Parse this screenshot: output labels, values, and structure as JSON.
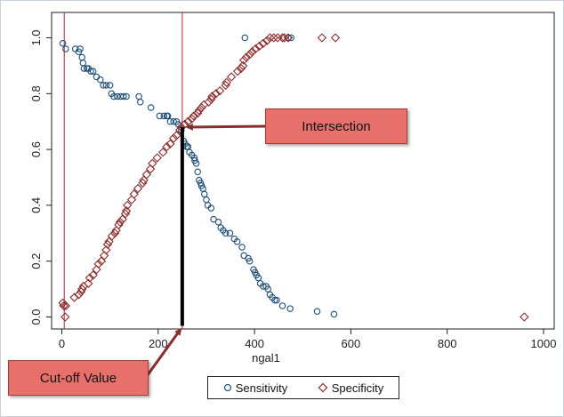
{
  "chart_data": {
    "type": "scatter",
    "xlabel": "ngal1",
    "ylabel": "",
    "xlim": [
      0,
      1000
    ],
    "ylim": [
      0,
      1
    ],
    "xticks": [
      0,
      200,
      400,
      600,
      800,
      1000
    ],
    "yticks": [
      "0.0",
      "0.2",
      "0.4",
      "0.6",
      "0.8",
      "1.0"
    ],
    "vertical_lines": [
      5,
      250
    ],
    "cutoff_line": {
      "x": 250,
      "y_from": 0,
      "y_to": 0.68
    },
    "legend_placement": "bottom-center",
    "grid": false,
    "series": [
      {
        "name": "Sensitivity",
        "marker": "circle",
        "color": "#1f4e79",
        "x": [
          2,
          8,
          28,
          35,
          38,
          42,
          44,
          46,
          52,
          55,
          60,
          65,
          72,
          80,
          86,
          92,
          100,
          103,
          108,
          115,
          122,
          128,
          134,
          160,
          163,
          185,
          203,
          212,
          218,
          220,
          225,
          232,
          238,
          242,
          248,
          253,
          256,
          259,
          262,
          265,
          270,
          275,
          276,
          279,
          282,
          285,
          288,
          290,
          293,
          296,
          300,
          303,
          310,
          315,
          325,
          330,
          335,
          340,
          349,
          358,
          364,
          374,
          378,
          387,
          390,
          398,
          401,
          404,
          408,
          412,
          418,
          424,
          428,
          432,
          437,
          442,
          446,
          458,
          474,
          530,
          565,
          380,
          470,
          476
        ],
        "y": [
          0.98,
          0.96,
          0.96,
          0.95,
          0.96,
          0.93,
          0.91,
          0.89,
          0.89,
          0.89,
          0.88,
          0.88,
          0.86,
          0.85,
          0.83,
          0.83,
          0.83,
          0.8,
          0.79,
          0.79,
          0.79,
          0.79,
          0.79,
          0.79,
          0.77,
          0.75,
          0.72,
          0.72,
          0.72,
          0.72,
          0.7,
          0.7,
          0.7,
          0.69,
          0.67,
          0.63,
          0.62,
          0.61,
          0.61,
          0.59,
          0.58,
          0.57,
          0.56,
          0.55,
          0.52,
          0.49,
          0.48,
          0.47,
          0.46,
          0.44,
          0.42,
          0.4,
          0.39,
          0.35,
          0.34,
          0.32,
          0.31,
          0.3,
          0.3,
          0.28,
          0.27,
          0.25,
          0.22,
          0.21,
          0.2,
          0.17,
          0.16,
          0.15,
          0.14,
          0.12,
          0.11,
          0.11,
          0.1,
          0.08,
          0.07,
          0.06,
          0.06,
          0.04,
          0.03,
          0.02,
          0.01,
          1.0,
          1.0,
          1.0
        ]
      },
      {
        "name": "Specificity",
        "marker": "diamond",
        "color": "#8b2c2c",
        "x": [
          2,
          4,
          8,
          26,
          35,
          40,
          42,
          45,
          55,
          58,
          65,
          72,
          76,
          82,
          88,
          92,
          95,
          98,
          104,
          110,
          113,
          118,
          121,
          126,
          132,
          134,
          136,
          145,
          150,
          158,
          168,
          170,
          176,
          184,
          188,
          198,
          210,
          218,
          225,
          232,
          238,
          245,
          248,
          255,
          262,
          270,
          274,
          282,
          285,
          290,
          295,
          305,
          310,
          312,
          320,
          328,
          340,
          342,
          352,
          365,
          372,
          376,
          378,
          383,
          390,
          395,
          402,
          410,
          418,
          426,
          432,
          440,
          448,
          458,
          462,
          470,
          540,
          568,
          960,
          7
        ],
        "y": [
          0.05,
          0.04,
          0.04,
          0.07,
          0.08,
          0.09,
          0.1,
          0.11,
          0.12,
          0.14,
          0.15,
          0.17,
          0.19,
          0.2,
          0.22,
          0.24,
          0.26,
          0.27,
          0.29,
          0.3,
          0.31,
          0.33,
          0.34,
          0.35,
          0.37,
          0.38,
          0.4,
          0.42,
          0.44,
          0.46,
          0.48,
          0.49,
          0.51,
          0.53,
          0.55,
          0.57,
          0.59,
          0.61,
          0.62,
          0.64,
          0.65,
          0.67,
          0.68,
          0.69,
          0.7,
          0.71,
          0.72,
          0.73,
          0.74,
          0.75,
          0.76,
          0.77,
          0.78,
          0.79,
          0.8,
          0.81,
          0.83,
          0.84,
          0.86,
          0.88,
          0.89,
          0.9,
          0.92,
          0.93,
          0.94,
          0.95,
          0.96,
          0.97,
          0.98,
          0.99,
          1.0,
          1.0,
          1.0,
          1.0,
          1.0,
          1.0,
          1.0,
          1.0,
          0.0,
          0.0
        ]
      }
    ],
    "annotations": [
      {
        "text": "Intersection",
        "points_to": {
          "x": 250,
          "y": 0.68
        }
      },
      {
        "text": "Cut-off Value",
        "points_to": {
          "x": 250,
          "y": 0.0
        }
      }
    ]
  },
  "callouts": {
    "intersection": "Intersection",
    "cutoff": "Cut-off Value"
  },
  "legend": {
    "sensitivity_label": "Sensitivity",
    "specificity_label": "Specificity",
    "sensitivity_color": "#1f4e79",
    "specificity_color": "#8b2c2c"
  }
}
